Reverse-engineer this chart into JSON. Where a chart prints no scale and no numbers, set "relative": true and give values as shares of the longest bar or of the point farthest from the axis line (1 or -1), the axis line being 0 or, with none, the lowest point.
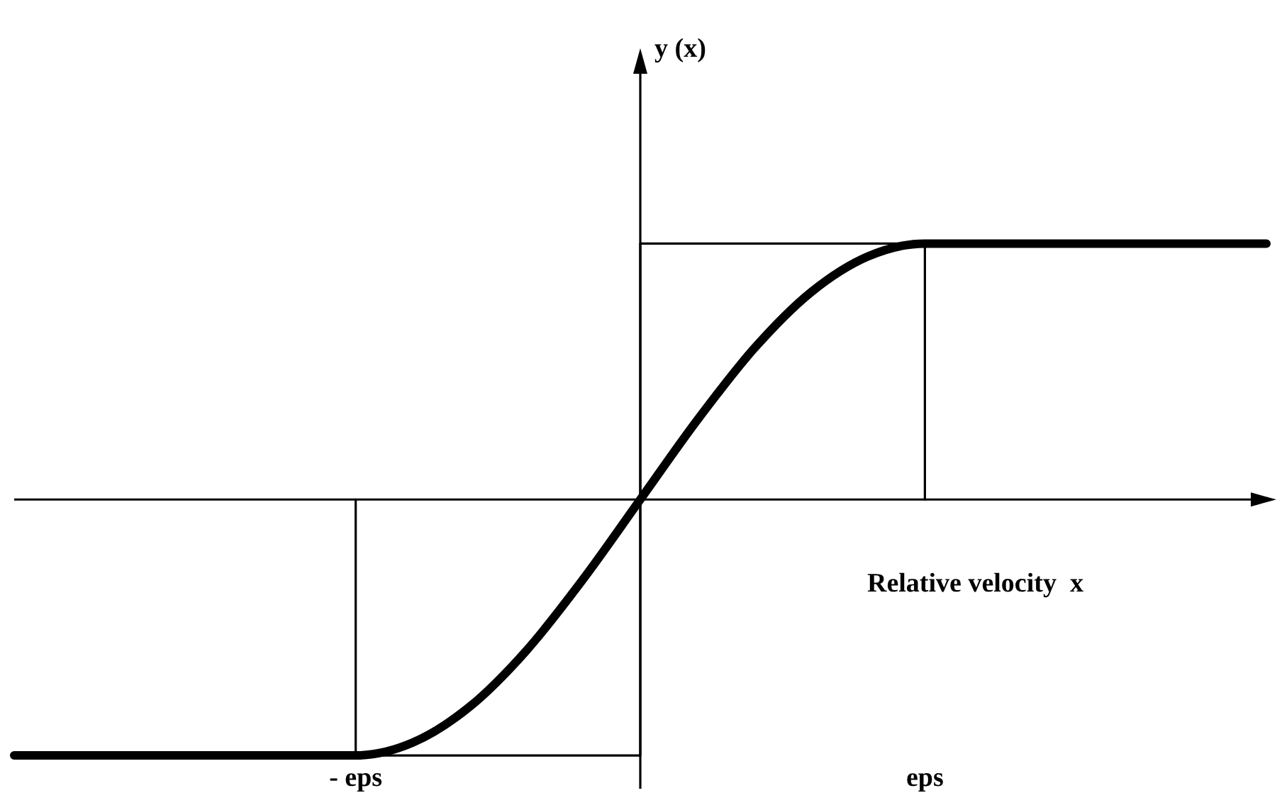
{
  "chart_data": {
    "type": "line",
    "relative": true,
    "xlabel": "Relative velocity  x",
    "annotations": [
      "y (x)"
    ],
    "categories": [
      null,
      null,
      null,
      null,
      null,
      null,
      "- eps",
      null,
      null,
      null,
      null,
      null,
      null,
      null,
      null,
      null,
      "eps",
      null,
      null,
      null,
      null,
      null,
      null
    ],
    "series": [
      {
        "color": "#000000",
        "values": [
          -1,
          -1,
          -1,
          -1,
          -1,
          -1,
          -1,
          -0.95,
          -0.81,
          -0.59,
          -0.31,
          0,
          0.31,
          0.59,
          0.81,
          0.95,
          1,
          1,
          1,
          1,
          1,
          1,
          1
        ]
      },
      {
        "type": "step",
        "color": "#000000",
        "values": [
          -1,
          -1,
          -1,
          -1,
          -1,
          -1,
          -1,
          -1,
          -1,
          -1,
          -1,
          1,
          1,
          1,
          1,
          1,
          1,
          1,
          1,
          1,
          1,
          1,
          1
        ]
      },
      {
        "color": "#000000",
        "x": [
          "eps",
          "eps"
        ],
        "values": [
          0,
          1
        ]
      },
      {
        "color": "#000000",
        "x": [
          "- eps",
          "- eps"
        ],
        "values": [
          0,
          -1
        ]
      }
    ],
    "line_style": "solid"
  }
}
